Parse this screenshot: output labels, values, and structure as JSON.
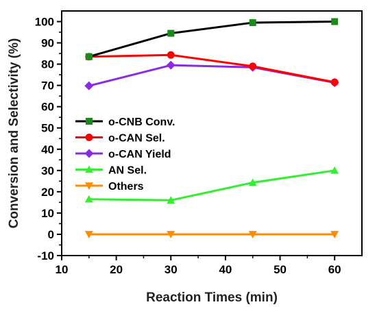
{
  "chart_data": {
    "type": "line",
    "xlabel": "Reaction Times (min)",
    "ylabel": "Conversion and Selectivity (%)",
    "xlim": [
      10,
      65
    ],
    "ylim": [
      -10,
      105
    ],
    "xticks": [
      10,
      20,
      30,
      40,
      50,
      60
    ],
    "yticks": [
      -10,
      0,
      10,
      20,
      30,
      40,
      50,
      60,
      70,
      80,
      90,
      100
    ],
    "x": [
      15,
      30,
      45,
      60
    ],
    "legend_position": "middle-left",
    "grid": false,
    "series": [
      {
        "name": "o-CNB Conv.",
        "values": [
          83.5,
          94.5,
          99.5,
          100
        ],
        "marker": "square",
        "marker_color": "#1a8a1a",
        "line_color": "#000000"
      },
      {
        "name": "o-CAN Sel.",
        "values": [
          83.5,
          84.3,
          79,
          71.5
        ],
        "marker": "circle",
        "marker_color": "#ff0000",
        "line_color": "#ff0000"
      },
      {
        "name": "o-CAN Yield",
        "values": [
          69.8,
          79.5,
          78.5,
          71.3
        ],
        "marker": "diamond",
        "marker_color": "#8a2be2",
        "line_color": "#8a2be2"
      },
      {
        "name": "AN Sel.",
        "values": [
          16.5,
          16,
          24.3,
          30
        ],
        "marker": "triangle-up",
        "marker_color": "#33ee33",
        "line_color": "#33ee33"
      },
      {
        "name": "Others",
        "values": [
          0,
          0,
          0,
          0
        ],
        "marker": "triangle-down",
        "marker_color": "#ff8c00",
        "line_color": "#ff8c00"
      }
    ]
  }
}
